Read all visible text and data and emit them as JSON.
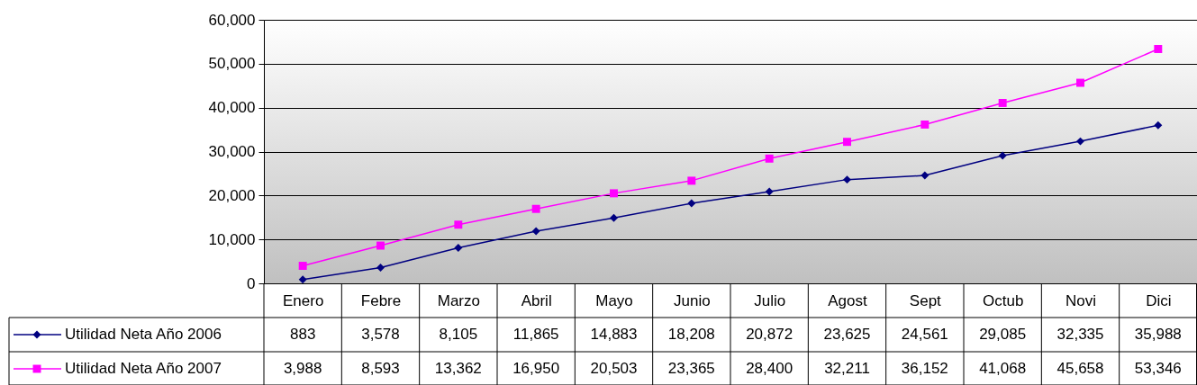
{
  "chart_data": {
    "type": "line",
    "categories": [
      "Enero",
      "Febre",
      "Marzo",
      "Abril",
      "Mayo",
      "Junio",
      "Julio",
      "Agost",
      "Sept",
      "Octub",
      "Novi",
      "Dici"
    ],
    "series": [
      {
        "name": "Utilidad Neta Año 2006",
        "color": "#000080",
        "marker": "diamond",
        "values": [
          883,
          3578,
          8105,
          11865,
          14883,
          18208,
          20872,
          23625,
          24561,
          29085,
          32335,
          35988
        ],
        "value_labels": [
          "883",
          "3,578",
          "8,105",
          "11,865",
          "14,883",
          "18,208",
          "20,872",
          "23,625",
          "24,561",
          "29,085",
          "32,335",
          "35,988"
        ]
      },
      {
        "name": "Utilidad Neta Año 2007",
        "color": "#ff00ff",
        "marker": "square",
        "values": [
          3988,
          8593,
          13362,
          16950,
          20503,
          23365,
          28400,
          32211,
          36152,
          41068,
          45658,
          53346
        ],
        "value_labels": [
          "3,988",
          "8,593",
          "13,362",
          "16,950",
          "20,503",
          "23,365",
          "28,400",
          "32,211",
          "36,152",
          "41,068",
          "45,658",
          "53,346"
        ]
      }
    ],
    "ylim": [
      0,
      60000
    ],
    "yticks": [
      0,
      {
        "value": 10000,
        "label": "10,000"
      },
      {
        "value": 20000,
        "label": "20,000"
      },
      {
        "value": 30000,
        "label": "30,000"
      },
      {
        "value": 40000,
        "label": "40,000"
      },
      {
        "value": 50000,
        "label": "50,000"
      },
      {
        "value": 60000,
        "label": "60,000"
      }
    ],
    "grid": "y",
    "legend": "bottom left",
    "line_style": "solid"
  }
}
